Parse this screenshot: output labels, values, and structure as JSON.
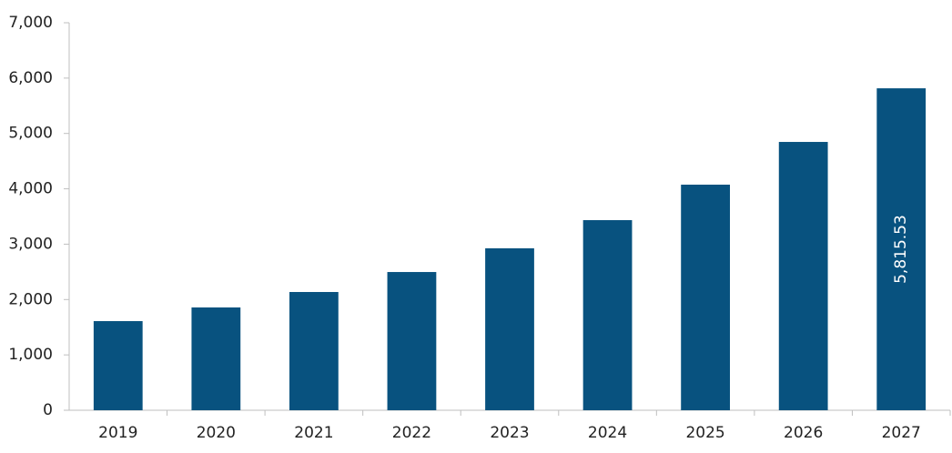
{
  "chart_data": {
    "type": "bar",
    "categories": [
      "2019",
      "2020",
      "2021",
      "2022",
      "2023",
      "2024",
      "2025",
      "2026",
      "2027"
    ],
    "values": [
      1610,
      1857,
      2136,
      2497,
      2925,
      3434,
      4075,
      4847,
      5815.53
    ],
    "value_labels": [
      null,
      null,
      null,
      null,
      null,
      null,
      null,
      null,
      "5,815.53"
    ],
    "color": "#08527f",
    "ylim": [
      0,
      7000
    ],
    "yticks": [
      0,
      {
        "value": 1000,
        "label": "1,000"
      },
      {
        "value": 2000,
        "label": "2,000"
      },
      {
        "value": 3000,
        "label": "3,000"
      },
      {
        "value": 4000,
        "label": "4,000"
      },
      {
        "value": 5000,
        "label": "5,000"
      },
      {
        "value": 6000,
        "label": "6,000"
      },
      {
        "value": 7000,
        "label": "7,000"
      }
    ],
    "grid": false
  }
}
